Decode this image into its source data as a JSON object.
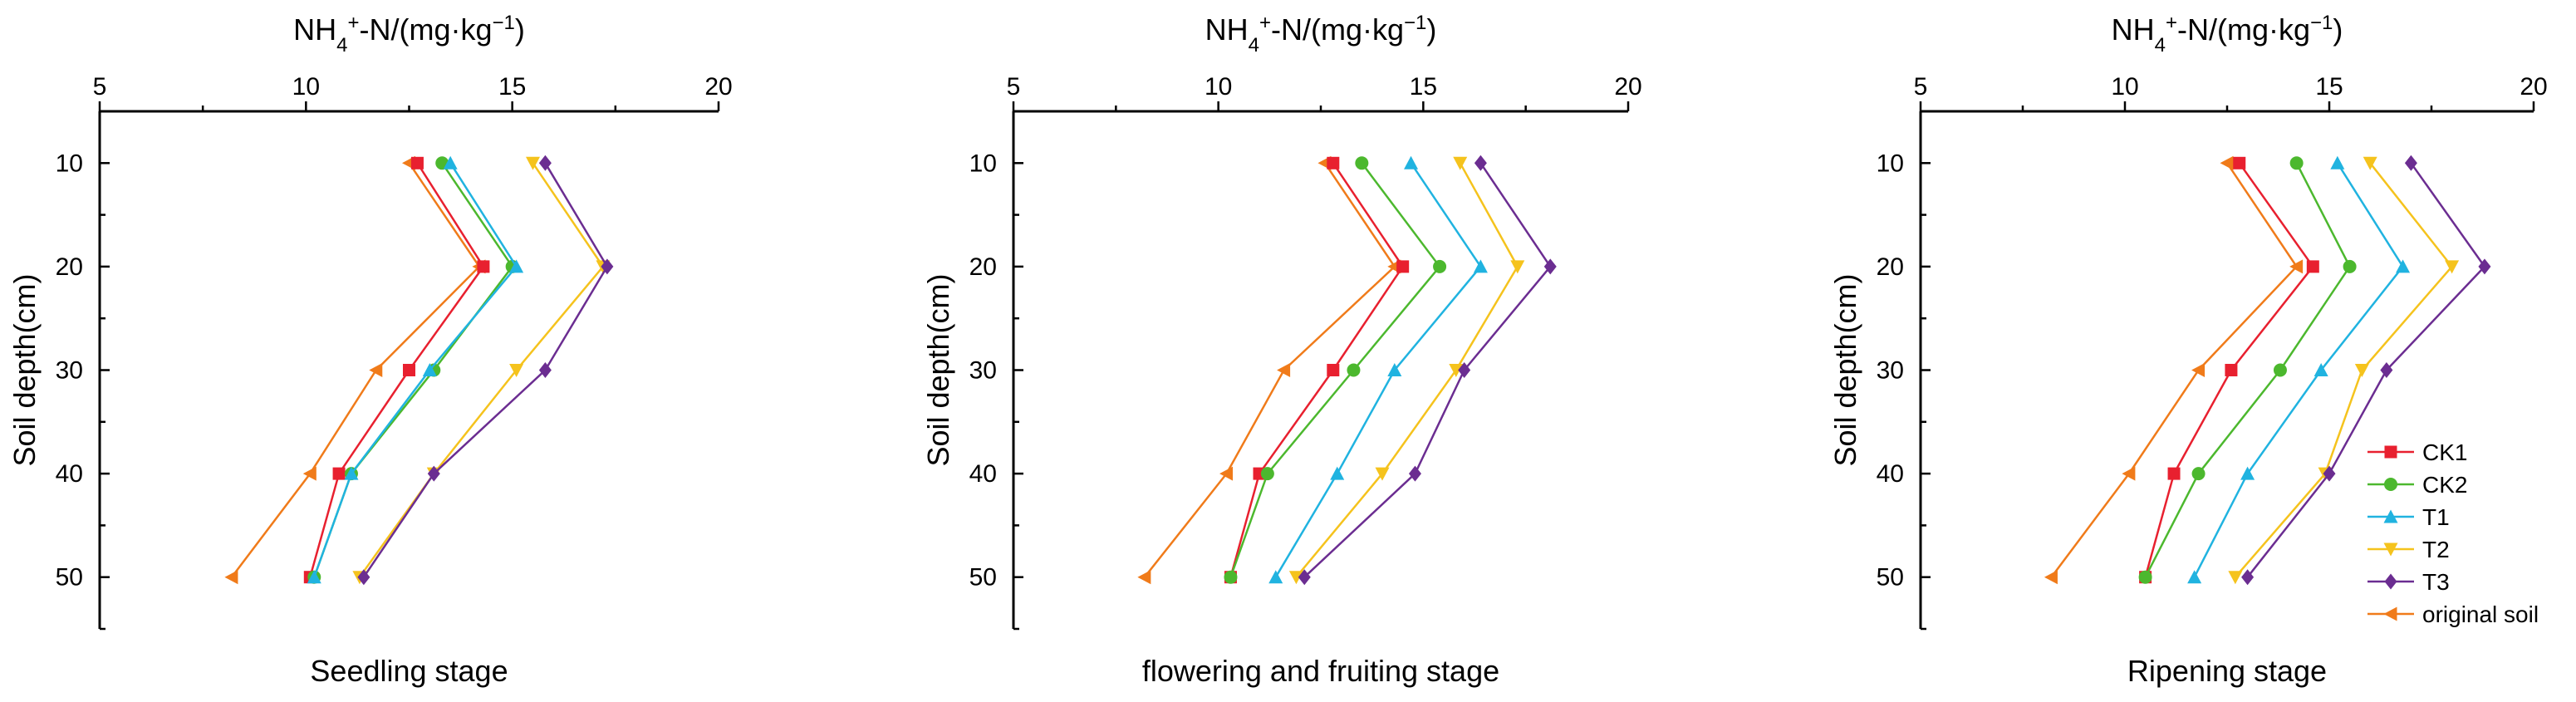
{
  "chart_data": [
    {
      "type": "line",
      "title": "Seedling stage",
      "xlabel": "NH4+-N/(mg·kg-1)",
      "xlabel_main": "NH",
      "xlabel_sub": "4",
      "xlabel_sup": "+",
      "xlabel_mid": "-N/(mg·kg",
      "xlabel_sup2": "−1",
      "xlabel_end": ")",
      "ylabel": "Soil depth(cm)",
      "xlim": [
        5,
        20
      ],
      "ylim": [
        5,
        55
      ],
      "xticks": [
        "5",
        "10",
        "15",
        "20"
      ],
      "yticks": [
        "10",
        "20",
        "30",
        "40",
        "50"
      ],
      "depths": [
        10,
        20,
        30,
        40,
        50
      ],
      "series": [
        {
          "name": "original soil",
          "values": [
            12.5,
            14.2,
            11.7,
            10.1,
            8.2
          ]
        },
        {
          "name": "CK1",
          "values": [
            12.7,
            14.3,
            12.5,
            10.8,
            10.1
          ]
        },
        {
          "name": "CK2",
          "values": [
            13.3,
            15.0,
            13.1,
            11.1,
            10.2
          ]
        },
        {
          "name": "T1",
          "values": [
            13.5,
            15.1,
            13.0,
            11.1,
            10.2
          ]
        },
        {
          "name": "T2",
          "values": [
            15.5,
            17.2,
            15.1,
            13.1,
            11.3
          ]
        },
        {
          "name": "T3",
          "values": [
            15.8,
            17.3,
            15.8,
            13.1,
            11.4
          ]
        }
      ]
    },
    {
      "type": "line",
      "title": "flowering and fruiting stage",
      "xlabel": "NH4+-N/(mg·kg-1)",
      "xlabel_main": "NH",
      "xlabel_sub": "4",
      "xlabel_sup": "+",
      "xlabel_mid": "-N/(mg·kg",
      "xlabel_sup2": "−1",
      "xlabel_end": ")",
      "ylabel": "Soil depth(cm)",
      "xlim": [
        5,
        20
      ],
      "ylim": [
        5,
        55
      ],
      "xticks": [
        "5",
        "10",
        "15",
        "20"
      ],
      "yticks": [
        "10",
        "20",
        "30",
        "40",
        "50"
      ],
      "depths": [
        10,
        20,
        30,
        40,
        50
      ],
      "series": [
        {
          "name": "original soil",
          "values": [
            12.6,
            14.3,
            11.6,
            10.2,
            8.2
          ]
        },
        {
          "name": "CK1",
          "values": [
            12.8,
            14.5,
            12.8,
            11.0,
            10.3
          ]
        },
        {
          "name": "CK2",
          "values": [
            13.5,
            15.4,
            13.3,
            11.2,
            10.3
          ]
        },
        {
          "name": "T1",
          "values": [
            14.7,
            16.4,
            14.3,
            12.9,
            11.4
          ]
        },
        {
          "name": "T2",
          "values": [
            15.9,
            17.3,
            15.8,
            14.0,
            11.9
          ]
        },
        {
          "name": "T3",
          "values": [
            16.4,
            18.1,
            16.0,
            14.8,
            12.1
          ]
        }
      ]
    },
    {
      "type": "line",
      "title": "Ripening stage",
      "xlabel": "NH4+-N/(mg·kg-1)",
      "xlabel_main": "NH",
      "xlabel_sub": "4",
      "xlabel_sup": "+",
      "xlabel_mid": "-N/(mg·kg",
      "xlabel_sup2": "−1",
      "xlabel_end": ")",
      "ylabel": "Soil depth(cm)",
      "xlim": [
        5,
        20
      ],
      "ylim": [
        5,
        55
      ],
      "xticks": [
        "5",
        "10",
        "15",
        "20"
      ],
      "yticks": [
        "10",
        "20",
        "30",
        "40",
        "50"
      ],
      "depths": [
        10,
        20,
        30,
        40,
        50
      ],
      "series": [
        {
          "name": "original soil",
          "values": [
            12.5,
            14.2,
            11.8,
            10.1,
            8.2
          ]
        },
        {
          "name": "CK1",
          "values": [
            12.8,
            14.6,
            12.6,
            11.2,
            10.5
          ]
        },
        {
          "name": "CK2",
          "values": [
            14.2,
            15.5,
            13.8,
            11.8,
            10.5
          ]
        },
        {
          "name": "T1",
          "values": [
            15.2,
            16.8,
            14.8,
            13.0,
            11.7
          ]
        },
        {
          "name": "T2",
          "values": [
            16.0,
            18.0,
            15.8,
            14.9,
            12.7
          ]
        },
        {
          "name": "T3",
          "values": [
            17.0,
            18.8,
            16.4,
            15.0,
            13.0
          ]
        }
      ]
    }
  ],
  "legend": {
    "placement": "bottom-right",
    "entries": [
      "CK1",
      "CK2",
      "T1",
      "T2",
      "T3",
      "original soil"
    ]
  },
  "styles": {
    "CK1": {
      "color": "#e8202f",
      "marker": "square"
    },
    "CK2": {
      "color": "#4cb82e",
      "marker": "circle"
    },
    "T1": {
      "color": "#20b3e0",
      "marker": "triangle-up"
    },
    "T2": {
      "color": "#f5c31d",
      "marker": "triangle-down"
    },
    "T3": {
      "color": "#6b2d91",
      "marker": "diamond"
    },
    "original soil": {
      "color": "#f07b1a",
      "marker": "triangle-left"
    }
  }
}
